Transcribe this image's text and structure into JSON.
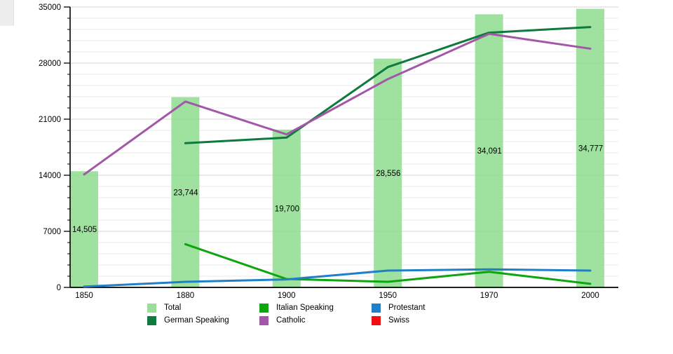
{
  "page": {
    "background": "#ffffff"
  },
  "chart_data": {
    "type": "bar",
    "subtype": "bar-line-combo",
    "title": "",
    "xlabel": "",
    "ylabel": "",
    "categories": [
      "1850",
      "1880",
      "1900",
      "1950",
      "1970",
      "2000"
    ],
    "ylim": [
      0,
      35000
    ],
    "yticks": [
      0,
      7000,
      14000,
      21000,
      28000,
      35000
    ],
    "ytick_labels": [
      "0",
      "7000",
      "14000",
      "21000",
      "28000",
      "35000"
    ],
    "minor_gridline_step": 1400,
    "grid": "horizontal major+minor",
    "legend_position": "bottom",
    "bars": {
      "name": "Total",
      "color": "#8edc8e",
      "values": [
        14505,
        23744,
        19700,
        28556,
        34091,
        34777
      ],
      "labels": [
        "14,505",
        "23,744",
        "19,700",
        "28,556",
        "34,091",
        "34,777"
      ]
    },
    "series": [
      {
        "name": "German Speaking",
        "color": "#0e7a3e",
        "values": [
          null,
          18000,
          18700,
          27500,
          31800,
          32500
        ]
      },
      {
        "name": "Italian Speaking",
        "color": "#0ea50e",
        "values": [
          null,
          5400,
          1050,
          700,
          1950,
          450
        ]
      },
      {
        "name": "Catholic",
        "color": "#a357a8",
        "values": [
          14100,
          23200,
          19100,
          26000,
          31650,
          29800
        ]
      },
      {
        "name": "Protestant",
        "color": "#1f80c8",
        "values": [
          100,
          700,
          1000,
          2100,
          2250,
          2100
        ]
      },
      {
        "name": "Swiss",
        "color": "#f10e10",
        "values": [
          null,
          null,
          null,
          null,
          null,
          null
        ]
      }
    ]
  },
  "legend": {
    "columns": [
      [
        {
          "label": "Total",
          "color": "#9ade9a",
          "swatch": "total-swatch"
        },
        {
          "label": "German Speaking",
          "color": "#0e7a3e",
          "swatch": "german-speaking-swatch"
        }
      ],
      [
        {
          "label": "Italian Speaking",
          "color": "#0ea50e",
          "swatch": "italian-speaking-swatch"
        },
        {
          "label": "Catholic",
          "color": "#a357a8",
          "swatch": "catholic-swatch"
        }
      ],
      [
        {
          "label": "Protestant",
          "color": "#1f80c8",
          "swatch": "protestant-swatch"
        },
        {
          "label": "Swiss",
          "color": "#f10e10",
          "swatch": "swiss-swatch"
        }
      ]
    ]
  },
  "layout_colors": {
    "axis": "#000000",
    "major_grid": "#d6d6d6",
    "minor_grid": "#ebebeb",
    "text": "#000000"
  }
}
